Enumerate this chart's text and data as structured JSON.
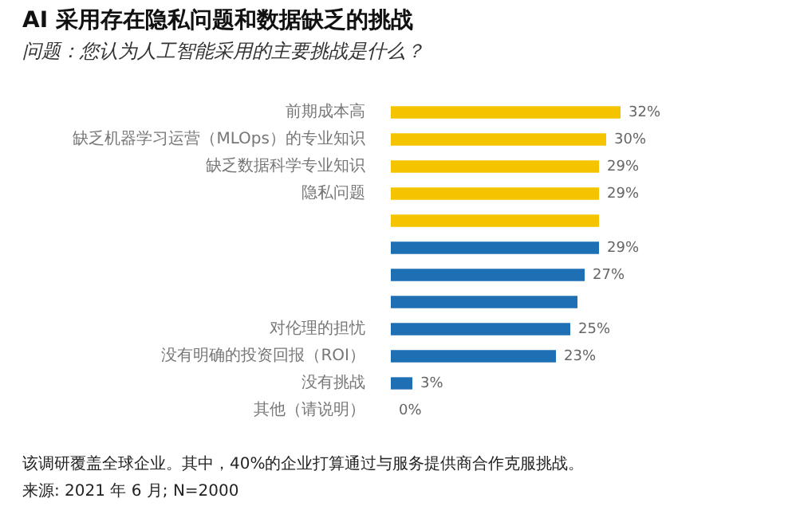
{
  "chart_data": {
    "type": "bar",
    "orientation": "horizontal",
    "title": "AI 采用存在隐私问题和数据缺乏的挑战",
    "subtitle": "问题：您认为人工智能采用的主要挑战是什么？",
    "categories": [
      "前期成本高",
      "缺乏机器学习运营（MLOps）的专业知识",
      "缺乏数据科学专业知识",
      "隐私问题",
      null,
      null,
      null,
      null,
      "对伦理的担忧",
      "没有明确的投资回报（ROI）",
      "没有挑战",
      "其他（请说明）"
    ],
    "values": [
      32,
      30,
      29,
      29,
      29,
      29,
      27,
      26,
      25,
      23,
      3,
      0
    ],
    "value_labels": [
      "32%",
      "30%",
      "29%",
      "29%",
      null,
      "29%",
      "27%",
      null,
      "25%",
      "23%",
      "3%",
      "0%"
    ],
    "colors": [
      "#f5c400",
      "#f5c400",
      "#f5c400",
      "#f5c400",
      "#f5c400",
      "#1f6fb5",
      "#1f6fb5",
      "#1f6fb5",
      "#1f6fb5",
      "#1f6fb5",
      "#1f6fb5",
      "#1f6fb5"
    ],
    "annotations": [
      "该调研覆盖全球企业。其中，40%的企业打算通过与服务提供商合作克服挑战。",
      "来源: 2021 年 6 月; N=2000"
    ]
  }
}
